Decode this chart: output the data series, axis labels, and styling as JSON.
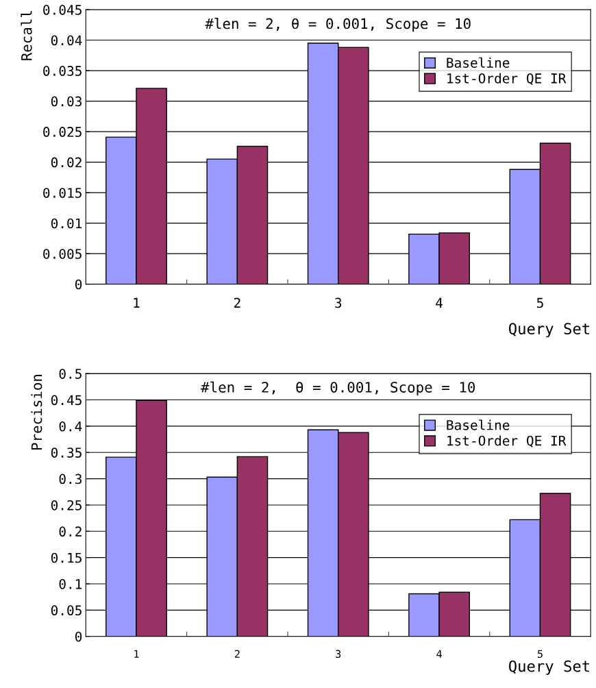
{
  "chart_data": [
    {
      "type": "bar",
      "title": "#len = 2, θ = 0.001, Scope = 10",
      "xlabel": "Query Set",
      "ylabel": "Recall",
      "categories": [
        "1",
        "2",
        "3",
        "4",
        "5"
      ],
      "series": [
        {
          "name": "Baseline",
          "color": "#9999ff",
          "values": [
            0.0241,
            0.0205,
            0.0395,
            0.0082,
            0.0188
          ]
        },
        {
          "name": "1st-Order QE IR",
          "color": "#993366",
          "values": [
            0.0321,
            0.0226,
            0.0388,
            0.0084,
            0.0231
          ]
        }
      ],
      "ylim": [
        0,
        0.045
      ],
      "yticks": [
        0,
        {
          "value": 0.005,
          "label": "0.005"
        },
        {
          "value": 0.01,
          "label": "0.01"
        },
        {
          "value": 0.015,
          "label": "0.015"
        },
        {
          "value": 0.02,
          "label": "0.02"
        },
        {
          "value": 0.025,
          "label": "0.025"
        },
        {
          "value": 0.03,
          "label": "0.03"
        },
        {
          "value": 0.035,
          "label": "0.035"
        },
        {
          "value": 0.04,
          "label": "0.04"
        },
        {
          "value": 0.045,
          "label": "0.045"
        }
      ],
      "grid": "y",
      "legend": "top right"
    },
    {
      "type": "bar",
      "title": "#len = 2,  θ = 0.001, Scope = 10",
      "xlabel": "Query Set",
      "ylabel": "Precision",
      "categories": [
        "1",
        "2",
        "3",
        "4",
        "5"
      ],
      "series": [
        {
          "name": "Baseline",
          "color": "#9999ff",
          "values": [
            0.341,
            0.303,
            0.393,
            0.081,
            0.222
          ]
        },
        {
          "name": "1st-Order QE IR",
          "color": "#993366",
          "values": [
            0.449,
            0.342,
            0.388,
            0.084,
            0.272
          ]
        }
      ],
      "ylim": [
        0,
        0.5
      ],
      "yticks": [
        0,
        {
          "value": 0.05,
          "label": "0.05"
        },
        {
          "value": 0.1,
          "label": "0.1"
        },
        {
          "value": 0.15,
          "label": "0.15"
        },
        {
          "value": 0.2,
          "label": "0.2"
        },
        {
          "value": 0.25,
          "label": "0.25"
        },
        {
          "value": 0.3,
          "label": "0.3"
        },
        {
          "value": 0.35,
          "label": "0.35"
        },
        {
          "value": 0.4,
          "label": "0.4"
        },
        {
          "value": 0.45,
          "label": "0.45"
        },
        {
          "value": 0.5,
          "label": "0.5"
        }
      ],
      "grid": "y",
      "legend": "top right"
    }
  ]
}
